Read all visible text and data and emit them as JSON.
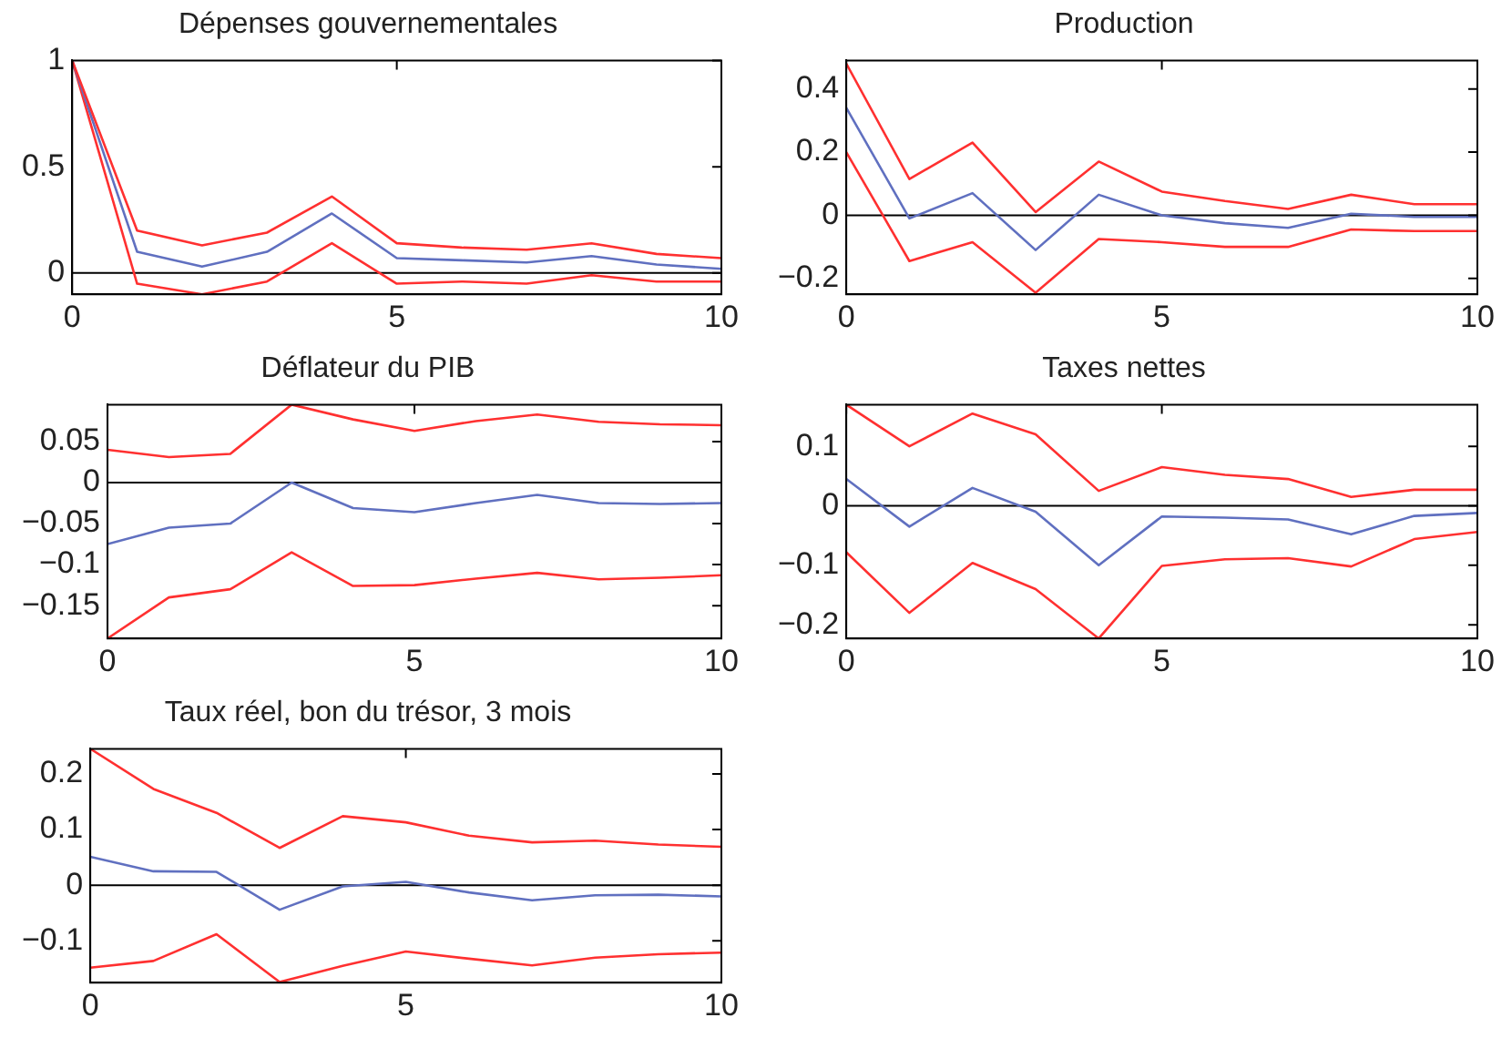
{
  "chart_data": [
    {
      "type": "line",
      "title": "Dépenses gouvernementales",
      "x": [
        0,
        1,
        2,
        3,
        4,
        5,
        6,
        7,
        8,
        9,
        10
      ],
      "xlim": [
        0,
        10
      ],
      "xticks": [
        0,
        5,
        10
      ],
      "ylim": [
        -0.1,
        1
      ],
      "yticks": [
        0,
        0.5,
        1
      ],
      "grid": false,
      "legend": false,
      "marker": "none",
      "line_style": "solid",
      "ref_lines": [
        {
          "axis": "y",
          "value": 0,
          "color": "#000000"
        }
      ],
      "series": [
        {
          "color": "#ff3030",
          "values": [
            1,
            0.2,
            0.13,
            0.19,
            0.36,
            0.14,
            0.12,
            0.11,
            0.14,
            0.09,
            0.07
          ]
        },
        {
          "color": "#6070c0",
          "values": [
            1,
            0.1,
            0.03,
            0.1,
            0.28,
            0.07,
            0.06,
            0.05,
            0.08,
            0.04,
            0.02
          ]
        },
        {
          "color": "#ff3030",
          "values": [
            1,
            -0.05,
            -0.1,
            -0.04,
            0.14,
            -0.05,
            -0.04,
            -0.05,
            -0.01,
            -0.04,
            -0.04
          ]
        }
      ]
    },
    {
      "type": "line",
      "title": "Production",
      "x": [
        0,
        1,
        2,
        3,
        4,
        5,
        6,
        7,
        8,
        9,
        10
      ],
      "xlim": [
        0,
        10
      ],
      "xticks": [
        0,
        5,
        10
      ],
      "ylim": [
        -0.25,
        0.49
      ],
      "yticks": [
        -0.2,
        0,
        0.2,
        0.4
      ],
      "grid": false,
      "legend": false,
      "marker": "none",
      "line_style": "solid",
      "ref_lines": [
        {
          "axis": "y",
          "value": 0,
          "color": "#000000"
        }
      ],
      "series": [
        {
          "color": "#ff3030",
          "values": [
            0.48,
            0.115,
            0.23,
            0.01,
            0.17,
            0.075,
            0.045,
            0.02,
            0.065,
            0.035,
            0.035
          ]
        },
        {
          "color": "#6070c0",
          "values": [
            0.34,
            -0.01,
            0.07,
            -0.11,
            0.065,
            0,
            -0.025,
            -0.04,
            0.005,
            -0.005,
            -0.005
          ]
        },
        {
          "color": "#ff3030",
          "values": [
            0.2,
            -0.145,
            -0.085,
            -0.245,
            -0.075,
            -0.085,
            -0.1,
            -0.1,
            -0.045,
            -0.05,
            -0.05
          ]
        }
      ]
    },
    {
      "type": "line",
      "title": "Déflateur du PIB",
      "x": [
        0,
        1,
        2,
        3,
        4,
        5,
        6,
        7,
        8,
        9,
        10
      ],
      "xlim": [
        0,
        10
      ],
      "xticks": [
        0,
        5,
        10
      ],
      "ylim": [
        -0.19,
        0.095
      ],
      "yticks": [
        -0.15,
        -0.1,
        -0.05,
        0,
        0.05
      ],
      "grid": false,
      "legend": false,
      "marker": "none",
      "line_style": "solid",
      "ref_lines": [
        {
          "axis": "y",
          "value": 0,
          "color": "#000000"
        }
      ],
      "series": [
        {
          "color": "#ff3030",
          "values": [
            0.04,
            0.031,
            0.035,
            0.095,
            0.077,
            0.063,
            0.075,
            0.083,
            0.074,
            0.071,
            0.07
          ]
        },
        {
          "color": "#6070c0",
          "values": [
            -0.075,
            -0.055,
            -0.05,
            0,
            -0.031,
            -0.036,
            -0.025,
            -0.015,
            -0.025,
            -0.026,
            -0.025
          ]
        },
        {
          "color": "#ff3030",
          "values": [
            -0.19,
            -0.14,
            -0.13,
            -0.085,
            -0.126,
            -0.125,
            -0.117,
            -0.11,
            -0.118,
            -0.116,
            -0.113
          ]
        }
      ]
    },
    {
      "type": "line",
      "title": "Taxes nettes",
      "x": [
        0,
        1,
        2,
        3,
        4,
        5,
        6,
        7,
        8,
        9,
        10
      ],
      "xlim": [
        0,
        10
      ],
      "xticks": [
        0,
        5,
        10
      ],
      "ylim": [
        -0.223,
        0.17
      ],
      "yticks": [
        -0.2,
        -0.1,
        0,
        0.1
      ],
      "grid": false,
      "legend": false,
      "marker": "none",
      "line_style": "solid",
      "ref_lines": [
        {
          "axis": "y",
          "value": 0,
          "color": "#000000"
        }
      ],
      "series": [
        {
          "color": "#ff3030",
          "values": [
            0.17,
            0.1,
            0.155,
            0.12,
            0.025,
            0.065,
            0.052,
            0.045,
            0.015,
            0.027,
            0.027
          ]
        },
        {
          "color": "#6070c0",
          "values": [
            0.045,
            -0.035,
            0.03,
            -0.01,
            -0.1,
            -0.018,
            -0.02,
            -0.023,
            -0.048,
            -0.017,
            -0.012
          ]
        },
        {
          "color": "#ff3030",
          "values": [
            -0.078,
            -0.18,
            -0.096,
            -0.14,
            -0.223,
            -0.101,
            -0.09,
            -0.088,
            -0.102,
            -0.056,
            -0.044
          ]
        }
      ]
    },
    {
      "type": "line",
      "title": "Taux réel, bon du trésor, 3 mois",
      "x": [
        0,
        1,
        2,
        3,
        4,
        5,
        6,
        7,
        8,
        9,
        10
      ],
      "xlim": [
        0,
        10
      ],
      "xticks": [
        0,
        5,
        10
      ],
      "ylim": [
        -0.175,
        0.245
      ],
      "yticks": [
        -0.1,
        0,
        0.1,
        0.2
      ],
      "grid": false,
      "legend": false,
      "marker": "none",
      "line_style": "solid",
      "ref_lines": [
        {
          "axis": "y",
          "value": 0,
          "color": "#000000"
        }
      ],
      "series": [
        {
          "color": "#ff3030",
          "values": [
            0.245,
            0.173,
            0.13,
            0.067,
            0.124,
            0.113,
            0.089,
            0.077,
            0.08,
            0.073,
            0.069
          ]
        },
        {
          "color": "#6070c0",
          "values": [
            0.051,
            0.025,
            0.024,
            -0.044,
            -0.002,
            0.006,
            -0.013,
            -0.027,
            -0.018,
            -0.017,
            -0.02
          ]
        },
        {
          "color": "#ff3030",
          "values": [
            -0.148,
            -0.136,
            -0.088,
            -0.174,
            -0.145,
            -0.119,
            -0.132,
            -0.144,
            -0.13,
            -0.124,
            -0.121
          ]
        }
      ]
    }
  ]
}
